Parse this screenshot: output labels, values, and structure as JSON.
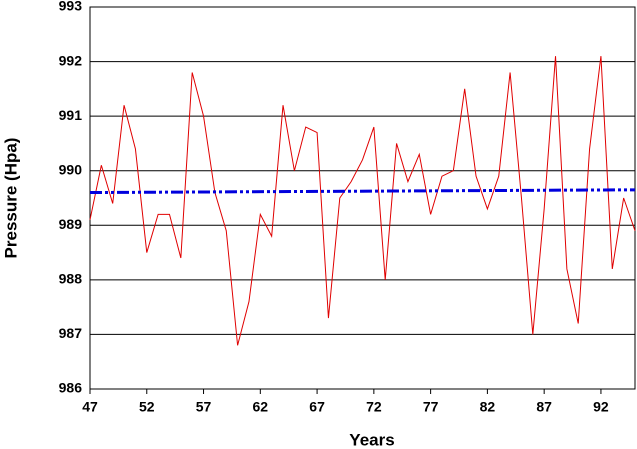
{
  "chart_data": {
    "type": "line",
    "xlabel": "Years",
    "ylabel": "Pressure (Hpa)",
    "x": [
      47,
      48,
      49,
      50,
      51,
      52,
      53,
      54,
      55,
      56,
      57,
      58,
      59,
      60,
      61,
      62,
      63,
      64,
      65,
      66,
      67,
      68,
      69,
      70,
      71,
      72,
      73,
      74,
      75,
      76,
      77,
      78,
      79,
      80,
      81,
      82,
      83,
      84,
      85,
      86,
      87,
      88,
      89,
      90,
      91,
      92,
      93,
      94,
      95
    ],
    "series": [
      {
        "color": "#e00000",
        "values": [
          989.1,
          990.1,
          989.4,
          991.2,
          990.4,
          988.5,
          989.2,
          989.2,
          988.4,
          991.8,
          991.0,
          989.6,
          988.9,
          986.8,
          987.6,
          989.2,
          988.8,
          991.2,
          990.0,
          990.8,
          990.7,
          987.3,
          989.5,
          989.8,
          990.2,
          990.8,
          988.0,
          990.5,
          989.8,
          990.3,
          989.2,
          989.9,
          990.0,
          991.5,
          989.9,
          989.3,
          989.9,
          991.8,
          989.5,
          987.0,
          989.3,
          992.1,
          988.2,
          987.2,
          990.4,
          992.1,
          988.2,
          989.5,
          988.9
        ]
      },
      {
        "color": "#0000dd",
        "x": [
          47,
          95
        ],
        "values": [
          989.6,
          989.65
        ],
        "dash": "12 3 3 3 3 3"
      }
    ],
    "xlim": [
      47,
      95
    ],
    "xticks": [
      47,
      52,
      57,
      62,
      67,
      72,
      77,
      82,
      87,
      92
    ],
    "ylim": [
      986,
      993
    ],
    "yticks": [
      986,
      987,
      988,
      989,
      990,
      991,
      992,
      993
    ],
    "grid": true
  }
}
